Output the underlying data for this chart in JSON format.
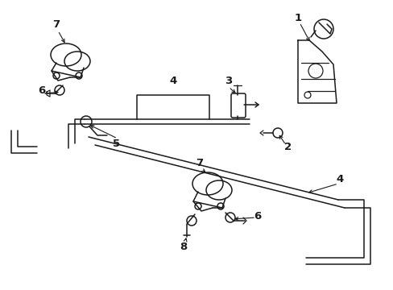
{
  "bg_color": "#ffffff",
  "lc": "#1a1a1a",
  "lw": 1.1,
  "figsize": [
    4.89,
    3.6
  ],
  "dpi": 100
}
